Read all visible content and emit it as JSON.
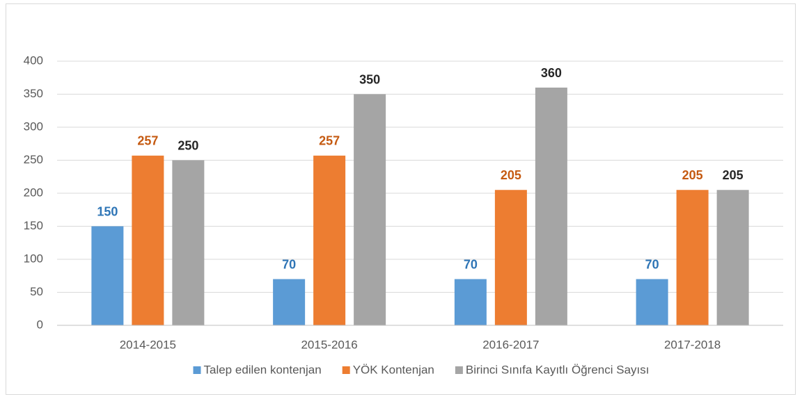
{
  "chart_data": {
    "type": "bar",
    "categories": [
      "2014-2015",
      "2015-2016",
      "2016-2017",
      "2017-2018"
    ],
    "series": [
      {
        "name": "Talep edilen kontenjan",
        "color": "#5b9bd5",
        "label_color": "#2e75b6",
        "values": [
          150,
          70,
          70,
          70
        ]
      },
      {
        "name": "YÖK Kontenjan",
        "color": "#ed7d31",
        "label_color": "#c55a11",
        "values": [
          257,
          257,
          205,
          205
        ]
      },
      {
        "name": "Birinci Sınıfa Kayıtlı Öğrenci Sayısı",
        "color": "#a5a5a5",
        "label_color": "#262626",
        "values": [
          250,
          350,
          360,
          205
        ]
      }
    ],
    "ylim": [
      0,
      400
    ],
    "yticks": [
      0,
      50,
      100,
      150,
      200,
      250,
      300,
      350,
      400
    ],
    "grid": true,
    "legend": "bottom"
  }
}
